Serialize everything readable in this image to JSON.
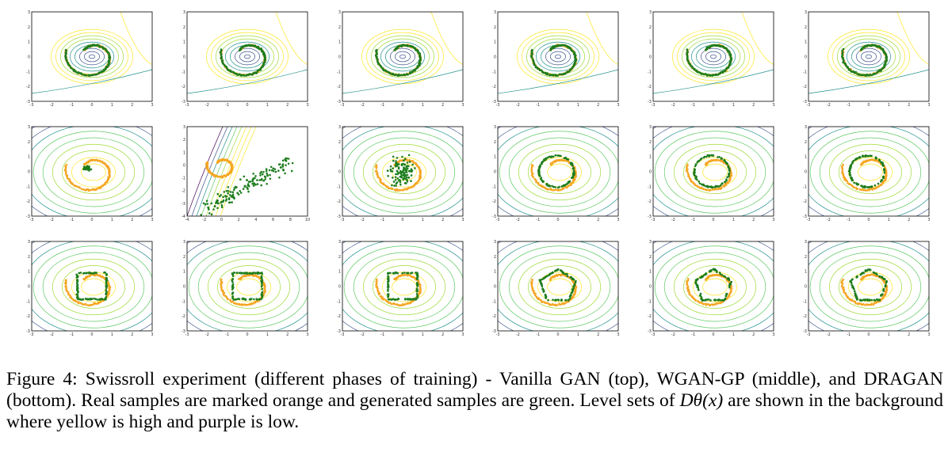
{
  "figure": {
    "rows": [
      {
        "name": "Vanilla GAN",
        "position": "top",
        "panels": [
          {
            "gen": "on",
            "disc": "center",
            "xticks": [
              "-3",
              "-2",
              "-1",
              "0",
              "1",
              "2",
              "3"
            ],
            "yticks": [
              "3",
              "2",
              "1",
              "0",
              "-1",
              "-2",
              "-3"
            ]
          },
          {
            "gen": "on",
            "disc": "center",
            "xticks": [
              "-3",
              "-2",
              "-1",
              "0",
              "1",
              "2",
              "3"
            ],
            "yticks": [
              "3",
              "2",
              "1",
              "0",
              "-1",
              "-2",
              "-3"
            ]
          },
          {
            "gen": "on",
            "disc": "center",
            "xticks": [
              "-3",
              "-2",
              "-1",
              "0",
              "1",
              "2",
              "3"
            ],
            "yticks": [
              "3",
              "2",
              "1",
              "0",
              "-1",
              "-2",
              "-3"
            ]
          },
          {
            "gen": "on",
            "disc": "center",
            "xticks": [
              "-3",
              "-2",
              "-1",
              "0",
              "1",
              "2",
              "3"
            ],
            "yticks": [
              "3",
              "2",
              "1",
              "0",
              "-1",
              "-2",
              "-3"
            ]
          },
          {
            "gen": "on",
            "disc": "center",
            "xticks": [
              "-3",
              "-2",
              "-1",
              "0",
              "1",
              "2",
              "3"
            ],
            "yticks": [
              "3",
              "2",
              "1",
              "0",
              "-1",
              "-2",
              "-3"
            ]
          },
          {
            "gen": "on",
            "disc": "center",
            "xticks": [
              "-3",
              "-2",
              "-1",
              "0",
              "1",
              "2",
              "3"
            ],
            "yticks": [
              "3",
              "2",
              "1",
              "0",
              "-1",
              "-2",
              "-3"
            ]
          }
        ]
      },
      {
        "name": "WGAN-GP",
        "position": "middle",
        "panels": [
          {
            "gen": "collapse",
            "disc": "radial",
            "xticks": [
              "-3",
              "-2",
              "-1",
              "0",
              "1",
              "2",
              "3"
            ],
            "yticks": [
              "3",
              "2",
              "1",
              "0",
              "-1",
              "-2",
              "-3"
            ]
          },
          {
            "gen": "scatter",
            "disc": "lines",
            "xticks": [
              "-4",
              "-2",
              "0",
              "2",
              "4",
              "6",
              "8",
              "10"
            ],
            "yticks": [
              "3",
              "2",
              "1",
              "0",
              "-1",
              "-2",
              "-3",
              "-4"
            ]
          },
          {
            "gen": "cluster",
            "disc": "radial",
            "xticks": [
              "-3",
              "-2",
              "-1",
              "0",
              "1",
              "2",
              "3"
            ],
            "yticks": [
              "3",
              "2",
              "1",
              "0",
              "-1",
              "-2",
              "-3"
            ]
          },
          {
            "gen": "ring",
            "disc": "radial",
            "xticks": [
              "-3",
              "-2",
              "-1",
              "0",
              "1",
              "2",
              "3"
            ],
            "yticks": [
              "3",
              "2",
              "1",
              "0",
              "-1",
              "-2",
              "-3"
            ]
          },
          {
            "gen": "ring",
            "disc": "radial",
            "xticks": [
              "-3",
              "-2",
              "-1",
              "0",
              "1",
              "2",
              "3"
            ],
            "yticks": [
              "3",
              "2",
              "1",
              "0",
              "-1",
              "-2",
              "-3"
            ]
          },
          {
            "gen": "ring",
            "disc": "radial",
            "xticks": [
              "-3",
              "-2",
              "-1",
              "0",
              "1",
              "2",
              "3"
            ],
            "yticks": [
              "3",
              "2",
              "1",
              "0",
              "-1",
              "-2",
              "-3"
            ]
          }
        ]
      },
      {
        "name": "DRAGAN",
        "position": "bottom",
        "panels": [
          {
            "gen": "square",
            "disc": "radial",
            "xticks": [
              "-3",
              "-2",
              "-1",
              "0",
              "1",
              "2",
              "3"
            ],
            "yticks": [
              "3",
              "2",
              "1",
              "0",
              "-1",
              "-2",
              "-3"
            ]
          },
          {
            "gen": "square",
            "disc": "radial",
            "xticks": [
              "-3",
              "-2",
              "-1",
              "0",
              "1",
              "2",
              "3"
            ],
            "yticks": [
              "3",
              "2",
              "1",
              "0",
              "-1",
              "-2",
              "-3"
            ]
          },
          {
            "gen": "square",
            "disc": "radial",
            "xticks": [
              "-3",
              "-2",
              "-1",
              "0",
              "1",
              "2",
              "3"
            ],
            "yticks": [
              "3",
              "2",
              "1",
              "0",
              "-1",
              "-2",
              "-3"
            ]
          },
          {
            "gen": "pentagon",
            "disc": "radial",
            "xticks": [
              "-3",
              "-2",
              "-1",
              "0",
              "1",
              "2",
              "3"
            ],
            "yticks": [
              "3",
              "2",
              "1",
              "0",
              "-1",
              "-2",
              "-3"
            ]
          },
          {
            "gen": "pentagon",
            "disc": "radial",
            "xticks": [
              "-3",
              "-2",
              "-1",
              "0",
              "1",
              "2",
              "3"
            ],
            "yticks": [
              "3",
              "2",
              "1",
              "0",
              "-1",
              "-2",
              "-3"
            ]
          },
          {
            "gen": "pentagon",
            "disc": "radial",
            "xticks": [
              "-3",
              "-2",
              "-1",
              "0",
              "1",
              "2",
              "3"
            ],
            "yticks": [
              "3",
              "2",
              "1",
              "0",
              "-1",
              "-2",
              "-3"
            ]
          }
        ]
      }
    ],
    "colors": {
      "real": "#f5a623",
      "generated": "#1e7d1e",
      "high": "#fde725",
      "low": "#440154",
      "frame": "#000000"
    }
  },
  "caption": {
    "label": "Figure 4:",
    "text_before_math": "Swissroll experiment (different phases of training) - Vanilla GAN (top), WGAN-GP (middle), and DRAGAN (bottom). Real samples are marked orange and generated samples are green. Level sets of",
    "math": "Dθ(x)",
    "text_after_math": "are shown in the background where yellow is high and purple is low."
  }
}
